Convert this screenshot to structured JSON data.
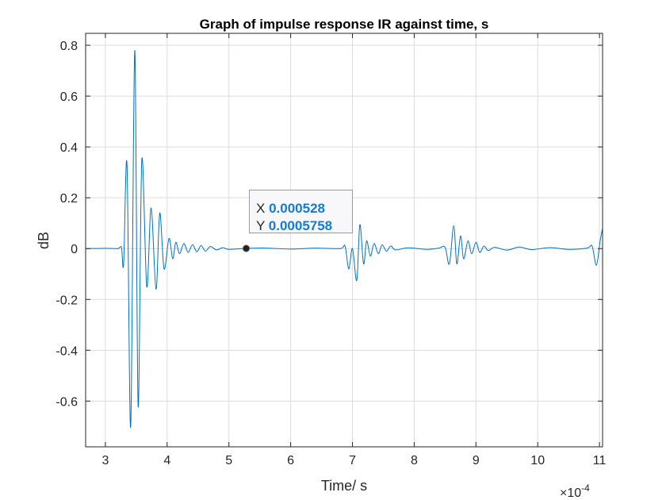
{
  "chart_data": {
    "type": "line",
    "title": "Graph of impulse response IR against time, s",
    "xlabel": "Time/ s",
    "ylabel": "dB",
    "x_exponent_label": "×10",
    "x_exponent": "-4",
    "xlim": [
      2.68,
      11.05
    ],
    "ylim": [
      -0.78,
      0.847
    ],
    "xticks": [
      3,
      4,
      5,
      6,
      7,
      8,
      9,
      10,
      11
    ],
    "yticks": [
      -0.6,
      -0.4,
      -0.2,
      0,
      0.2,
      0.4,
      0.6,
      0.8
    ],
    "ytick_labels": [
      "-0.6",
      "-0.4",
      "-0.2",
      "0",
      "0.2",
      "0.4",
      "0.6",
      "0.8"
    ],
    "grid": true,
    "line_color": "#0072bd",
    "series": [
      {
        "name": "IR",
        "points": [
          [
            2.68,
            0
          ],
          [
            3.0,
            0.001
          ],
          [
            3.2,
            0
          ],
          [
            3.26,
            0.005
          ],
          [
            3.295,
            -0.06
          ],
          [
            3.35,
            0.33
          ],
          [
            3.41,
            -0.7
          ],
          [
            3.475,
            0.78
          ],
          [
            3.53,
            -0.62
          ],
          [
            3.59,
            0.35
          ],
          [
            3.67,
            -0.15
          ],
          [
            3.74,
            0.16
          ],
          [
            3.82,
            -0.16
          ],
          [
            3.88,
            0.14
          ],
          [
            3.95,
            -0.08
          ],
          [
            4.03,
            0.04
          ],
          [
            4.09,
            -0.04
          ],
          [
            4.14,
            0.025
          ],
          [
            4.2,
            -0.02
          ],
          [
            4.27,
            0.02
          ],
          [
            4.34,
            -0.015
          ],
          [
            4.41,
            0.015
          ],
          [
            4.48,
            -0.012
          ],
          [
            4.55,
            0.012
          ],
          [
            4.62,
            -0.01
          ],
          [
            4.7,
            0.008
          ],
          [
            4.8,
            -0.005
          ],
          [
            4.9,
            0.004
          ],
          [
            5.0,
            -0.003
          ],
          [
            5.28,
            0.0005758
          ],
          [
            5.6,
            0.002
          ],
          [
            6.0,
            -0.002
          ],
          [
            6.4,
            0.002
          ],
          [
            6.8,
            0
          ],
          [
            6.88,
            0.01
          ],
          [
            6.94,
            -0.08
          ],
          [
            7.0,
            0.0
          ],
          [
            7.07,
            -0.125
          ],
          [
            7.12,
            0.094
          ],
          [
            7.18,
            -0.06
          ],
          [
            7.23,
            0.03
          ],
          [
            7.29,
            -0.03
          ],
          [
            7.35,
            0.02
          ],
          [
            7.42,
            -0.02
          ],
          [
            7.48,
            0.015
          ],
          [
            7.55,
            -0.01
          ],
          [
            7.62,
            0.01
          ],
          [
            7.7,
            -0.005
          ],
          [
            7.9,
            0.003
          ],
          [
            8.2,
            -0.003
          ],
          [
            8.4,
            0.002
          ],
          [
            8.5,
            0.005
          ],
          [
            8.57,
            -0.06
          ],
          [
            8.64,
            0.09
          ],
          [
            8.69,
            -0.06
          ],
          [
            8.75,
            0.05
          ],
          [
            8.8,
            -0.04
          ],
          [
            8.87,
            0.03
          ],
          [
            8.93,
            -0.02
          ],
          [
            9.0,
            0.025
          ],
          [
            9.06,
            -0.015
          ],
          [
            9.13,
            0.01
          ],
          [
            9.2,
            -0.008
          ],
          [
            9.3,
            0.005
          ],
          [
            9.5,
            -0.006
          ],
          [
            9.7,
            0.006
          ],
          [
            9.9,
            -0.004
          ],
          [
            10.2,
            0.004
          ],
          [
            10.5,
            -0.003
          ],
          [
            10.8,
            0.002
          ],
          [
            10.88,
            0.01
          ],
          [
            10.95,
            -0.065
          ],
          [
            11.01,
            0.03
          ],
          [
            11.05,
            0.08
          ]
        ]
      }
    ],
    "datatip": {
      "x_label": "X",
      "x_value": "0.000528",
      "y_label": "Y",
      "y_value": "0.0005758",
      "x": 5.28,
      "y": 0.0005758
    }
  }
}
